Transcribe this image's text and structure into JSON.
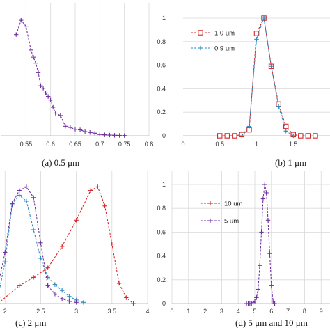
{
  "chart_data": [
    {
      "type": "line",
      "caption": "(a) 0.5 μm",
      "xlim": [
        0.5,
        0.8
      ],
      "ylim": [
        0,
        1
      ],
      "xticks": [
        "0.55",
        "0.6",
        "0.65",
        "0.7",
        "0.75",
        "0.8"
      ],
      "grid": "vertical",
      "series": [
        {
          "color": "#7030a0",
          "marker": "plus",
          "x": [
            0.53,
            0.54,
            0.55,
            0.56,
            0.565,
            0.57,
            0.575,
            0.58,
            0.585,
            0.59,
            0.595,
            0.6,
            0.605,
            0.61,
            0.62,
            0.63,
            0.64,
            0.65,
            0.66,
            0.67,
            0.68,
            0.69,
            0.7,
            0.71,
            0.72,
            0.73,
            0.74,
            0.75
          ],
          "y": [
            0.85,
            0.97,
            0.92,
            0.72,
            0.66,
            0.61,
            0.53,
            0.42,
            0.4,
            0.36,
            0.33,
            0.3,
            0.24,
            0.19,
            0.17,
            0.08,
            0.07,
            0.055,
            0.05,
            0.035,
            0.028,
            0.022,
            0.01,
            0.008,
            0.006,
            0.004,
            0.003,
            0.002
          ]
        }
      ]
    },
    {
      "type": "line",
      "caption": "(b) 1 μm",
      "xlim": [
        0,
        2
      ],
      "ylim": [
        0,
        1
      ],
      "xticks": [
        "0",
        "0.5",
        "1",
        "1.5"
      ],
      "yticks": [
        "0",
        "0.2",
        "0.4",
        "0.6",
        "0.8",
        "1"
      ],
      "grid": "horizontal",
      "legend_position": "top-left",
      "series": [
        {
          "name": "1.0 um",
          "color": "#d62728",
          "marker": "square",
          "x": [
            0.5,
            0.6,
            0.7,
            0.8,
            0.9,
            1.0,
            1.1,
            1.2,
            1.3,
            1.4,
            1.5,
            1.6,
            1.7,
            1.8
          ],
          "y": [
            0.0,
            0.0,
            0.0,
            0.01,
            0.05,
            0.87,
            1.0,
            0.59,
            0.27,
            0.08,
            0.01,
            0.0,
            0.0,
            0.0
          ]
        },
        {
          "name": "0.9 um",
          "color": "#2e8bc0",
          "marker": "plus",
          "x": [
            0.8,
            0.9,
            1.0,
            1.1,
            1.2,
            1.3,
            1.4,
            1.5
          ],
          "y": [
            0.0,
            0.08,
            0.82,
            1.0,
            0.59,
            0.25,
            0.04,
            0.0
          ]
        }
      ]
    },
    {
      "type": "line",
      "caption": "(c) 2 μm",
      "xlim": [
        1.9,
        4
      ],
      "ylim": [
        0,
        1
      ],
      "xticks": [
        "2",
        "2.5",
        "3",
        "3.5",
        "4"
      ],
      "grid": "vertical",
      "series": [
        {
          "color": "#d62728",
          "marker": "plus",
          "x": [
            1.9,
            2.2,
            2.4,
            2.6,
            2.8,
            3.0,
            3.2,
            3.3,
            3.4,
            3.5,
            3.6,
            3.7,
            3.8
          ],
          "y": [
            0.0,
            0.15,
            0.22,
            0.3,
            0.48,
            0.7,
            0.95,
            0.98,
            0.82,
            0.5,
            0.17,
            0.05,
            0.0
          ]
        },
        {
          "color": "#2e8bc0",
          "marker": "plus",
          "x": [
            1.9,
            2.0,
            2.1,
            2.2,
            2.3,
            2.4,
            2.5,
            2.6,
            2.7,
            2.8,
            2.9,
            3.0,
            3.1
          ],
          "y": [
            0.05,
            0.35,
            0.83,
            0.91,
            0.86,
            0.62,
            0.38,
            0.22,
            0.16,
            0.11,
            0.06,
            0.03,
            0.01
          ]
        },
        {
          "color": "#7030a0",
          "marker": "plus",
          "x": [
            1.9,
            2.0,
            2.1,
            2.2,
            2.3,
            2.4,
            2.5,
            2.6,
            2.7,
            2.8,
            2.9,
            3.0
          ],
          "y": [
            0.15,
            0.43,
            0.84,
            0.95,
            0.98,
            0.89,
            0.51,
            0.15,
            0.08,
            0.04,
            0.02,
            0.01
          ]
        }
      ]
    },
    {
      "type": "line",
      "caption": "(d) 5 μm and 10 μm",
      "xlim": [
        0,
        10
      ],
      "ylim": [
        0,
        1
      ],
      "xticks": [
        "0",
        "1",
        "2",
        "3",
        "4",
        "5",
        "6",
        "7",
        "8",
        "9"
      ],
      "yticks": [
        "0",
        "0.2",
        "0.4",
        "0.6",
        "0.8",
        "1"
      ],
      "grid": "both",
      "legend_position": "top-left",
      "series": [
        {
          "name": "10 um",
          "color": "#d62728",
          "marker": "plus",
          "x": [],
          "y": []
        },
        {
          "name": "5 um",
          "color": "#7030a0",
          "marker": "plus",
          "x": [
            4.5,
            4.6,
            4.7,
            4.8,
            4.9,
            5.0,
            5.1,
            5.2,
            5.3,
            5.4,
            5.5,
            5.6,
            5.7,
            5.8,
            5.9,
            6.0,
            6.1,
            6.2
          ],
          "y": [
            0.0,
            0.0,
            0.0,
            0.0,
            0.01,
            0.02,
            0.05,
            0.12,
            0.32,
            0.6,
            0.88,
            1.0,
            0.93,
            0.7,
            0.42,
            0.15,
            0.02,
            0.0
          ]
        }
      ]
    }
  ]
}
